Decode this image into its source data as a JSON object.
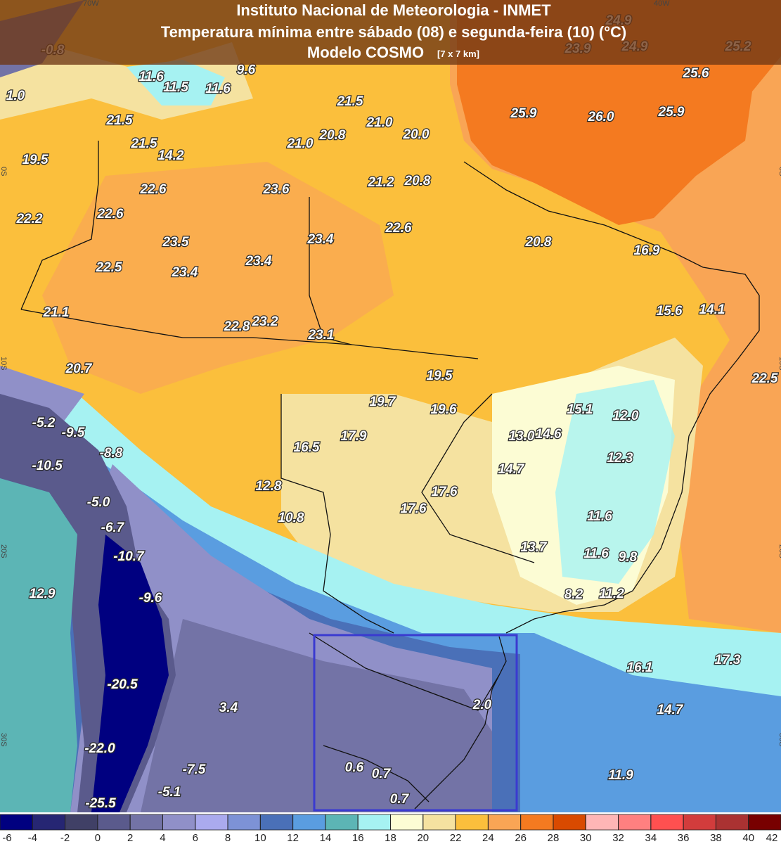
{
  "header": {
    "title": "Instituto Nacional de Meteorologia - INMET",
    "subtitle": "Temperatura mínima entre sábado (08) e segunda-feira (10) (°C)",
    "model": "Modelo COSMO",
    "resolution": "[7 x 7 km]"
  },
  "grid_labels": [
    "70W",
    "40W",
    "0S",
    "10S",
    "20S",
    "30S"
  ],
  "map_labels": [
    "-0.8",
    "23.9",
    "24.9",
    "24.9",
    "25.2",
    "25.6",
    "11.6",
    "9.6",
    "11.5",
    "11.6",
    "1.0",
    "21.5",
    "25.9",
    "26.0",
    "25.9",
    "21.5",
    "21.0",
    "20.8",
    "20.0",
    "21.5",
    "21.0",
    "14.2",
    "19.5",
    "21.2",
    "20.8",
    "22.6",
    "23.6",
    "22.2",
    "22.6",
    "22.6",
    "23.4",
    "20.8",
    "23.5",
    "16.9",
    "23.4",
    "22.5",
    "23.4",
    "21.1",
    "15.6",
    "14.1",
    "22.8",
    "23.2",
    "23.1",
    "20.7",
    "19.5",
    "22.5",
    "19.7",
    "15.1",
    "12.0",
    "19.6",
    "-5.2",
    "-9.5",
    "17.9",
    "13.0",
    "14.6",
    "16.5",
    "-8.8",
    "12.3",
    "-10.5",
    "14.7",
    "17.6",
    "12.8",
    "-5.0",
    "17.6",
    "10.8",
    "11.6",
    "-6.7",
    "13.7",
    "11.6",
    "9.8",
    "-10.7",
    "12.9",
    "8.2",
    "11.2",
    "-9.6",
    "17.3",
    "16.1",
    "-20.5",
    "3.4",
    "2.0",
    "14.7",
    "-22.0",
    "0.6",
    "-7.5",
    "0.7",
    "11.9",
    "-5.1",
    "0.7",
    "-25.5"
  ],
  "scale": {
    "colors": [
      "#000080",
      "#262673",
      "#404066",
      "#5a5a8c",
      "#7373a6",
      "#9090c8",
      "#aaaaee",
      "#7d92d6",
      "#4a70b8",
      "#5a9de0",
      "#5cb5b5",
      "#a6f2f2",
      "#fcfcd4",
      "#f5e2a0",
      "#fbbf3c",
      "#f9a555",
      "#f47a20",
      "#d94a00",
      "#ffb6b6",
      "#ff8080",
      "#ff5050",
      "#d23c3c",
      "#aa3232",
      "#780000"
    ],
    "ticks": [
      -6,
      -4,
      -2,
      0,
      2,
      4,
      6,
      8,
      10,
      12,
      14,
      16,
      18,
      20,
      22,
      24,
      26,
      28,
      30,
      32,
      34,
      36,
      38,
      40,
      42
    ]
  }
}
